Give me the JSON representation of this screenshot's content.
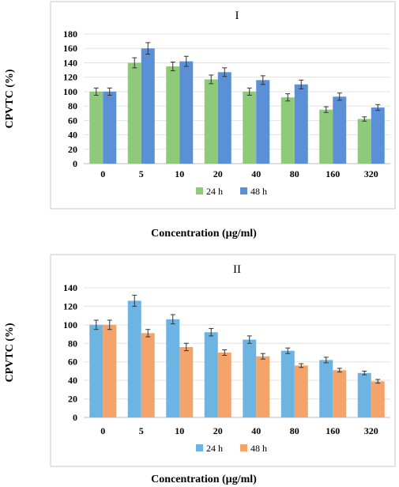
{
  "chart_data": [
    {
      "type": "bar",
      "title": "I",
      "xlabel": "Concentration (µg/ml)",
      "ylabel": "CPVTC (%)",
      "ylim": [
        0,
        180
      ],
      "yticks": [
        0,
        20,
        40,
        60,
        80,
        100,
        120,
        140,
        160,
        180
      ],
      "grid": true,
      "legend_position": "bottom",
      "categories": [
        "0",
        "5",
        "10",
        "20",
        "40",
        "80",
        "160",
        "320"
      ],
      "series": [
        {
          "name": "24 h",
          "color": "#8FC97A",
          "values": [
            100,
            140,
            135,
            117,
            100,
            92,
            75,
            62
          ],
          "errors": [
            5,
            7,
            6,
            6,
            5,
            5,
            4,
            3
          ]
        },
        {
          "name": "48 h",
          "color": "#5B8FD6",
          "values": [
            100,
            160,
            142,
            127,
            116,
            110,
            93,
            78
          ],
          "errors": [
            5,
            8,
            7,
            6,
            6,
            6,
            5,
            4
          ]
        }
      ]
    },
    {
      "type": "bar",
      "title": "II",
      "xlabel": "Concentration (µg/ml)",
      "ylabel": "CPVTC (%)",
      "ylim": [
        0,
        140
      ],
      "yticks": [
        0,
        20,
        40,
        60,
        80,
        100,
        120,
        140
      ],
      "grid": true,
      "legend_position": "bottom",
      "categories": [
        "0",
        "5",
        "10",
        "20",
        "40",
        "80",
        "160",
        "320"
      ],
      "series": [
        {
          "name": "24 h",
          "color": "#6EB4E3",
          "values": [
            100,
            126,
            106,
            92,
            84,
            72,
            62,
            48
          ],
          "errors": [
            5,
            6,
            5,
            4,
            4,
            3,
            3,
            2
          ]
        },
        {
          "name": "48 h",
          "color": "#F4A36A",
          "values": [
            100,
            91,
            76,
            70,
            66,
            56,
            51,
            39
          ],
          "errors": [
            5,
            4,
            4,
            3,
            3,
            2,
            2,
            2
          ]
        }
      ]
    }
  ]
}
